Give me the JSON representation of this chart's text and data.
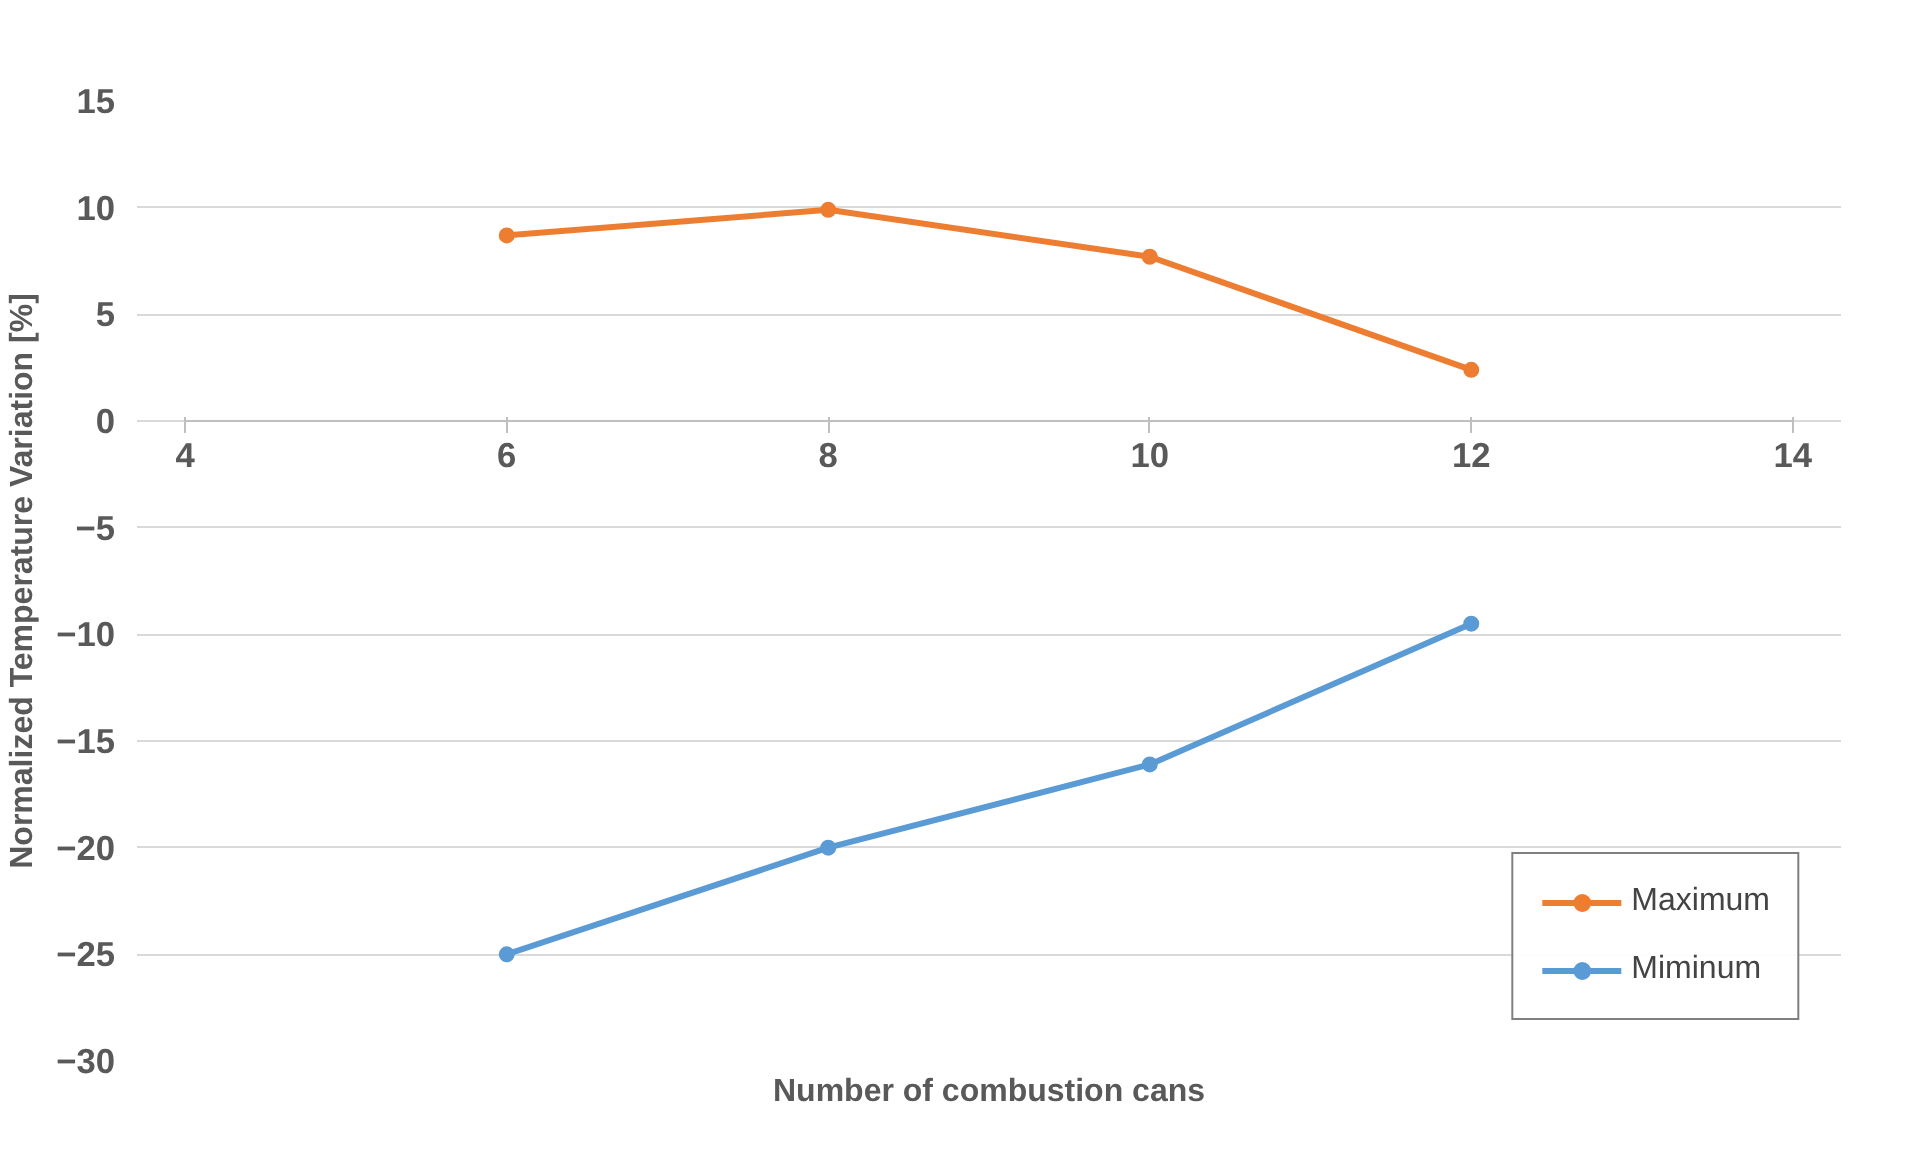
{
  "chart_data": {
    "type": "line",
    "xlabel": "Number of combustion cans",
    "ylabel": "Normalized Temperature Variation [%]",
    "x": [
      6,
      8,
      10,
      12
    ],
    "series": [
      {
        "name": "Maximum",
        "color": "#ed7d31",
        "values": [
          8.7,
          9.9,
          7.7,
          2.4
        ]
      },
      {
        "name": "Miminum",
        "color": "#5b9bd5",
        "values": [
          -25.0,
          -20.0,
          -16.1,
          -9.5
        ]
      }
    ],
    "xlim": [
      4,
      14
    ],
    "xticks": [
      4,
      6,
      8,
      10,
      12,
      14
    ],
    "ylim": [
      -30,
      15
    ],
    "yticks": [
      -30,
      -25,
      -20,
      -15,
      -10,
      -5,
      0,
      5,
      10,
      15
    ],
    "grid": "y",
    "legend": "bottom right",
    "marker": "circle",
    "line_style": "solid"
  }
}
